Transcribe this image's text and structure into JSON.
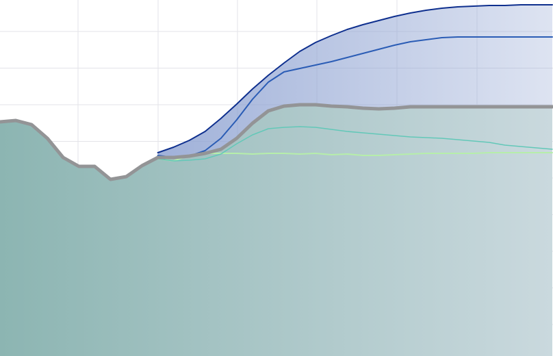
{
  "chart_data": {
    "type": "area",
    "title": "",
    "xlabel": "",
    "ylabel": "",
    "xlim": [
      0,
      35
    ],
    "ylim": [
      0,
      520
    ],
    "grid": true,
    "legend": "none",
    "x": [
      0,
      1,
      2,
      3,
      4,
      5,
      6,
      7,
      8,
      9,
      10,
      11,
      12,
      13,
      14,
      15,
      16,
      17,
      18,
      19,
      20,
      21,
      22,
      23,
      24,
      25,
      26,
      27,
      28,
      29,
      30,
      31,
      32,
      33,
      34,
      35
    ],
    "series": [
      {
        "role": "history",
        "values": [
          342,
          344,
          338,
          318,
          290,
          277,
          277,
          258,
          262,
          278,
          290,
          290,
          295,
          302,
          315,
          332,
          350,
          365,
          376,
          383,
          387,
          390,
          390,
          390,
          390,
          390,
          390,
          390,
          390,
          390,
          390,
          390,
          390,
          390,
          390,
          390
        ],
        "color": "#939496",
        "fill_top": "#8cb5b2",
        "fill_bottom": "#cad9de"
      },
      {
        "role": "upper-bound",
        "values": [
          null,
          null,
          null,
          null,
          null,
          null,
          null,
          null,
          null,
          null,
          297,
          305,
          315,
          328,
          347,
          368,
          390,
          410,
          428,
          445,
          458,
          468,
          477,
          484,
          490,
          496,
          501,
          505,
          508,
          510,
          511,
          512,
          512,
          513,
          513,
          513
        ],
        "color": "#0e2f8e"
      },
      {
        "role": "upper-median",
        "values": [
          null,
          null,
          null,
          null,
          null,
          null,
          null,
          null,
          null,
          null,
          293,
          290,
          292,
          300,
          318,
          345,
          375,
          400,
          415,
          420,
          425,
          430,
          436,
          442,
          448,
          454,
          459,
          462,
          465,
          466,
          466,
          466,
          466,
          466,
          466,
          466
        ],
        "color": "#2a5cb5"
      },
      {
        "role": "baseline",
        "values": [
          null,
          null,
          null,
          null,
          null,
          null,
          null,
          null,
          null,
          null,
          290,
          290,
          292,
          296,
          302,
          318,
          340,
          358,
          365,
          367,
          367,
          365,
          364,
          362,
          361,
          362,
          364,
          364,
          364,
          364,
          364,
          364,
          364,
          364,
          364,
          364
        ],
        "color": "#939496"
      },
      {
        "role": "alt-scenario-1",
        "values": [
          null,
          null,
          null,
          null,
          null,
          null,
          null,
          null,
          null,
          null,
          288,
          285,
          286,
          288,
          295,
          310,
          323,
          332,
          334,
          335,
          334,
          331,
          328,
          326,
          324,
          322,
          320,
          319,
          318,
          316,
          314,
          312,
          308,
          306,
          304,
          302
        ],
        "color": "#62c8b8"
      },
      {
        "role": "alt-scenario-2",
        "values": [
          null,
          null,
          null,
          null,
          null,
          null,
          null,
          null,
          null,
          null,
          288,
          285,
          293,
          296,
          296,
          296,
          295,
          296,
          296,
          295,
          296,
          294,
          295,
          293,
          293,
          294,
          295,
          296,
          296,
          296,
          296,
          297,
          297,
          297,
          297,
          297
        ],
        "color": "#b6eeaa"
      }
    ],
    "band_fill": "#8fa3d2"
  }
}
